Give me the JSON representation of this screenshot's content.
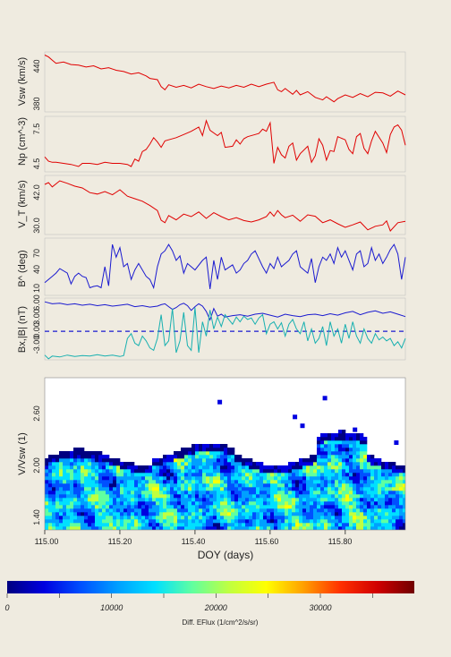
{
  "chart_data": [
    {
      "type": "line",
      "ylabel": "Vsw (km/s)",
      "yticks": [
        "440",
        "380"
      ],
      "ylim": [
        365,
        460
      ],
      "color": "#e00000",
      "x": [
        115.0,
        115.01,
        115.02,
        115.03,
        115.05,
        115.07,
        115.09,
        115.11,
        115.13,
        115.15,
        115.17,
        115.19,
        115.21,
        115.23,
        115.25,
        115.27,
        115.28,
        115.3,
        115.31,
        115.32,
        115.33,
        115.35,
        115.37,
        115.39,
        115.41,
        115.43,
        115.45,
        115.47,
        115.49,
        115.51,
        115.53,
        115.55,
        115.57,
        115.59,
        115.61,
        115.62,
        115.63,
        115.64,
        115.66,
        115.67,
        115.68,
        115.7,
        115.72,
        115.74,
        115.75,
        115.77,
        115.78,
        115.8,
        115.82,
        115.84,
        115.86,
        115.88,
        115.9,
        115.92,
        115.94,
        115.96
      ],
      "values": [
        455,
        452,
        447,
        442,
        444,
        440,
        439,
        436,
        438,
        433,
        435,
        431,
        429,
        425,
        427,
        422,
        418,
        416,
        405,
        400,
        408,
        404,
        407,
        403,
        409,
        405,
        402,
        406,
        403,
        407,
        404,
        409,
        405,
        409,
        412,
        400,
        397,
        402,
        393,
        399,
        392,
        397,
        388,
        384,
        389,
        381,
        386,
        392,
        388,
        394,
        389,
        396,
        395,
        390,
        398,
        392
      ]
    },
    {
      "type": "line",
      "ylabel": "Np (cm^-3)",
      "yticks": [
        "7.5",
        "4.5"
      ],
      "ylim": [
        3.9,
        9.1
      ],
      "color": "#e00000",
      "x": [
        115.0,
        115.01,
        115.02,
        115.03,
        115.05,
        115.07,
        115.08,
        115.09,
        115.1,
        115.12,
        115.14,
        115.16,
        115.18,
        115.2,
        115.22,
        115.23,
        115.24,
        115.25,
        115.26,
        115.27,
        115.28,
        115.29,
        115.3,
        115.31,
        115.32,
        115.33,
        115.35,
        115.37,
        115.39,
        115.41,
        115.42,
        115.43,
        115.44,
        115.46,
        115.47,
        115.48,
        115.5,
        115.51,
        115.52,
        115.53,
        115.54,
        115.56,
        115.57,
        115.58,
        115.59,
        115.6,
        115.61,
        115.62,
        115.63,
        115.64,
        115.65,
        115.66,
        115.67,
        115.68,
        115.7,
        115.71,
        115.72,
        115.73,
        115.74,
        115.75,
        115.76,
        115.77,
        115.78,
        115.8,
        115.81,
        115.82,
        115.83,
        115.84,
        115.85,
        115.86,
        115.87,
        115.88,
        115.9,
        115.91,
        115.92,
        115.93,
        115.94,
        115.95,
        115.96
      ],
      "values": [
        5.3,
        4.9,
        4.8,
        4.8,
        4.7,
        4.6,
        4.5,
        4.4,
        4.7,
        4.7,
        4.6,
        4.8,
        4.7,
        4.7,
        4.6,
        4.4,
        5.1,
        4.9,
        5.8,
        6.0,
        6.5,
        7.1,
        6.7,
        6.2,
        6.8,
        6.9,
        7.1,
        7.4,
        7.7,
        8.1,
        7.3,
        8.7,
        7.8,
        7.3,
        7.6,
        6.2,
        6.3,
        6.9,
        6.5,
        7.0,
        7.2,
        7.4,
        7.5,
        7.9,
        7.7,
        8.5,
        4.7,
        6.2,
        5.5,
        5.2,
        6.3,
        6.6,
        5.0,
        5.6,
        6.3,
        4.8,
        5.4,
        7.0,
        6.4,
        5.0,
        5.9,
        5.8,
        7.2,
        6.9,
        6.0,
        5.6,
        7.2,
        7.5,
        6.1,
        5.6,
        6.8,
        7.7,
        6.6,
        5.7,
        7.4,
        8.1,
        8.3,
        7.8,
        6.4
      ]
    },
    {
      "type": "line",
      "ylabel": "V_T (km/s)",
      "yticks": [
        "42.0",
        "30.0"
      ],
      "ylim": [
        28.5,
        45.0
      ],
      "color": "#e00000",
      "x": [
        115.0,
        115.01,
        115.02,
        115.04,
        115.06,
        115.08,
        115.1,
        115.12,
        115.14,
        115.16,
        115.18,
        115.2,
        115.22,
        115.24,
        115.26,
        115.28,
        115.3,
        115.31,
        115.32,
        115.33,
        115.35,
        115.37,
        115.39,
        115.41,
        115.43,
        115.45,
        115.47,
        115.49,
        115.51,
        115.53,
        115.55,
        115.57,
        115.59,
        115.6,
        115.61,
        115.62,
        115.63,
        115.64,
        115.66,
        115.68,
        115.7,
        115.72,
        115.74,
        115.76,
        115.78,
        115.8,
        115.82,
        115.84,
        115.86,
        115.88,
        115.9,
        115.91,
        115.92,
        115.94,
        115.96
      ],
      "values": [
        42.5,
        43.0,
        41.8,
        43.5,
        42.8,
        42.0,
        41.5,
        40.2,
        39.8,
        40.5,
        39.6,
        41.0,
        39.2,
        38.5,
        37.8,
        36.6,
        35.2,
        32.5,
        31.8,
        33.8,
        32.6,
        34.2,
        33.5,
        34.8,
        33.0,
        34.6,
        33.5,
        32.6,
        33.2,
        32.4,
        32.0,
        32.6,
        33.5,
        34.8,
        33.6,
        35.2,
        34.0,
        33.2,
        33.9,
        32.2,
        34.0,
        33.6,
        31.8,
        32.6,
        31.5,
        30.5,
        31.2,
        32.0,
        29.8,
        30.8,
        31.2,
        32.3,
        29.5,
        31.8,
        32.2
      ]
    },
    {
      "type": "line",
      "ylabel": "B^ (deg)",
      "yticks": [
        "70",
        "40",
        "10"
      ],
      "ylim": [
        0,
        90
      ],
      "color": "#1a1ad0",
      "x": [
        115.0,
        115.01,
        115.02,
        115.03,
        115.04,
        115.06,
        115.07,
        115.08,
        115.09,
        115.1,
        115.11,
        115.12,
        115.13,
        115.14,
        115.15,
        115.16,
        115.17,
        115.18,
        115.19,
        115.2,
        115.21,
        115.22,
        115.23,
        115.24,
        115.25,
        115.27,
        115.28,
        115.29,
        115.3,
        115.31,
        115.32,
        115.33,
        115.34,
        115.35,
        115.36,
        115.37,
        115.38,
        115.39,
        115.4,
        115.42,
        115.43,
        115.44,
        115.45,
        115.46,
        115.47,
        115.48,
        115.5,
        115.51,
        115.52,
        115.53,
        115.54,
        115.55,
        115.56,
        115.58,
        115.59,
        115.6,
        115.61,
        115.62,
        115.63,
        115.64,
        115.65,
        115.66,
        115.67,
        115.68,
        115.69,
        115.7,
        115.71,
        115.72,
        115.73,
        115.74,
        115.75,
        115.76,
        115.77,
        115.78,
        115.79,
        115.8,
        115.81,
        115.82,
        115.83,
        115.84,
        115.85,
        115.86,
        115.87,
        115.88,
        115.89,
        115.9,
        115.91,
        115.92,
        115.93,
        115.94,
        115.95,
        115.96
      ],
      "values": [
        20,
        25,
        30,
        35,
        42,
        35,
        18,
        30,
        35,
        30,
        28,
        12,
        14,
        15,
        12,
        45,
        15,
        80,
        60,
        75,
        45,
        50,
        25,
        40,
        50,
        30,
        25,
        12,
        45,
        65,
        70,
        80,
        70,
        55,
        62,
        35,
        50,
        45,
        40,
        55,
        60,
        10,
        55,
        25,
        60,
        40,
        48,
        35,
        40,
        50,
        55,
        65,
        70,
        45,
        35,
        50,
        42,
        60,
        45,
        50,
        55,
        65,
        70,
        45,
        40,
        35,
        58,
        20,
        45,
        60,
        55,
        65,
        50,
        75,
        60,
        70,
        55,
        40,
        65,
        70,
        45,
        50,
        75,
        55,
        65,
        50,
        60,
        72,
        80,
        65,
        25,
        60
      ]
    },
    {
      "type": "line",
      "ylabel": "Bx,|B| (nT)",
      "yticks": [
        "6.00",
        "3.00",
        "0.00",
        "-3.00"
      ],
      "ylim": [
        -6,
        7
      ],
      "hline": 0,
      "series": [
        {
          "color": "#1a1ad0",
          "x": [
            115.0,
            115.02,
            115.04,
            115.06,
            115.08,
            115.1,
            115.12,
            115.14,
            115.16,
            115.18,
            115.2,
            115.22,
            115.24,
            115.26,
            115.28,
            115.3,
            115.31,
            115.32,
            115.33,
            115.34,
            115.35,
            115.36,
            115.37,
            115.38,
            115.39,
            115.4,
            115.41,
            115.42,
            115.43,
            115.44,
            115.45,
            115.46,
            115.47,
            115.48,
            115.5,
            115.52,
            115.54,
            115.56,
            115.58,
            115.6,
            115.62,
            115.64,
            115.66,
            115.68,
            115.7,
            115.72,
            115.74,
            115.76,
            115.78,
            115.8,
            115.82,
            115.84,
            115.86,
            115.88,
            115.9,
            115.92,
            115.94,
            115.96
          ],
          "values": [
            6.2,
            5.8,
            5.9,
            5.6,
            5.8,
            5.5,
            5.7,
            5.4,
            5.6,
            5.3,
            5.5,
            5.7,
            5.2,
            5.4,
            5.1,
            5.3,
            5.6,
            5.8,
            5.2,
            4.6,
            5.0,
            5.6,
            5.9,
            5.4,
            4.4,
            5.2,
            5.8,
            5.3,
            4.2,
            2.4,
            4.8,
            3.2,
            3.6,
            3.0,
            3.3,
            3.5,
            3.2,
            3.6,
            3.8,
            3.4,
            3.0,
            3.6,
            3.3,
            3.1,
            3.5,
            3.6,
            3.3,
            3.7,
            3.4,
            3.9,
            4.2,
            3.5,
            4.0,
            4.3,
            3.8,
            4.1,
            3.6,
            3.1
          ]
        },
        {
          "color": "#17b0b0",
          "x": [
            115.0,
            115.01,
            115.02,
            115.04,
            115.06,
            115.08,
            115.1,
            115.12,
            115.14,
            115.16,
            115.18,
            115.2,
            115.21,
            115.22,
            115.23,
            115.24,
            115.25,
            115.26,
            115.27,
            115.28,
            115.29,
            115.3,
            115.31,
            115.32,
            115.33,
            115.34,
            115.35,
            115.36,
            115.37,
            115.38,
            115.39,
            115.4,
            115.41,
            115.42,
            115.43,
            115.44,
            115.45,
            115.46,
            115.47,
            115.48,
            115.49,
            115.5,
            115.51,
            115.52,
            115.53,
            115.54,
            115.55,
            115.56,
            115.57,
            115.58,
            115.59,
            115.6,
            115.61,
            115.62,
            115.63,
            115.64,
            115.65,
            115.66,
            115.67,
            115.68,
            115.69,
            115.7,
            115.71,
            115.72,
            115.73,
            115.74,
            115.75,
            115.76,
            115.77,
            115.78,
            115.79,
            115.8,
            115.81,
            115.82,
            115.83,
            115.84,
            115.85,
            115.86,
            115.87,
            115.88,
            115.89,
            115.9,
            115.91,
            115.92,
            115.93,
            115.94,
            115.95,
            115.96
          ],
          "values": [
            -5.0,
            -5.8,
            -5.2,
            -5.4,
            -5.0,
            -5.3,
            -5.1,
            -5.2,
            -4.9,
            -5.2,
            -5.0,
            -5.3,
            -5.1,
            -1.5,
            -0.5,
            -2.5,
            -3.0,
            -1.0,
            -2.0,
            -3.5,
            -4.0,
            -1.5,
            3.5,
            -3.0,
            -2.0,
            4.8,
            -4.5,
            -2.0,
            4.0,
            -3.0,
            -4.0,
            5.0,
            -4.5,
            2.0,
            -1.0,
            4.5,
            0.5,
            3.0,
            1.0,
            3.5,
            2.5,
            1.5,
            3.0,
            2.0,
            3.2,
            2.5,
            2.8,
            1.5,
            2.8,
            3.5,
            -0.5,
            1.5,
            2.0,
            0.5,
            1.8,
            -1.0,
            1.5,
            2.5,
            0.5,
            -0.5,
            2.0,
            -2.0,
            0.5,
            -2.5,
            -1.5,
            1.0,
            -3.0,
            2.0,
            -1.0,
            0.5,
            -2.5,
            1.5,
            -1.5,
            2.0,
            -1.0,
            -2.5,
            0.5,
            -1.5,
            -2.5,
            -0.5,
            -1.8,
            -1.2,
            -2.0,
            -1.5,
            -3.0,
            -2.2,
            -3.5,
            -1.5
          ]
        }
      ]
    },
    {
      "type": "heatmap",
      "ylabel": "V/Vsw (1)",
      "xlabel": "DOY (days)",
      "yticks": [
        "2.60",
        "2.00",
        "1.40"
      ],
      "xticks": [
        "115.00",
        "115.20",
        "115.40",
        "115.60",
        "115.80"
      ],
      "xlim": [
        115.0,
        115.96
      ],
      "ylim": [
        1.28,
        2.82
      ],
      "colorbar": {
        "label": "Diff. EFlux (1/cm^2/s/sr)",
        "ticks": [
          "0",
          "10000",
          "20000",
          "30000"
        ],
        "range": [
          0,
          39000
        ],
        "colors": [
          "#000080",
          "#0000e0",
          "#0050ff",
          "#00a0ff",
          "#00e0ff",
          "#60ffa0",
          "#c0ff40",
          "#ffff00",
          "#ffa000",
          "#ff3000",
          "#d00000",
          "#700000"
        ]
      }
    }
  ]
}
